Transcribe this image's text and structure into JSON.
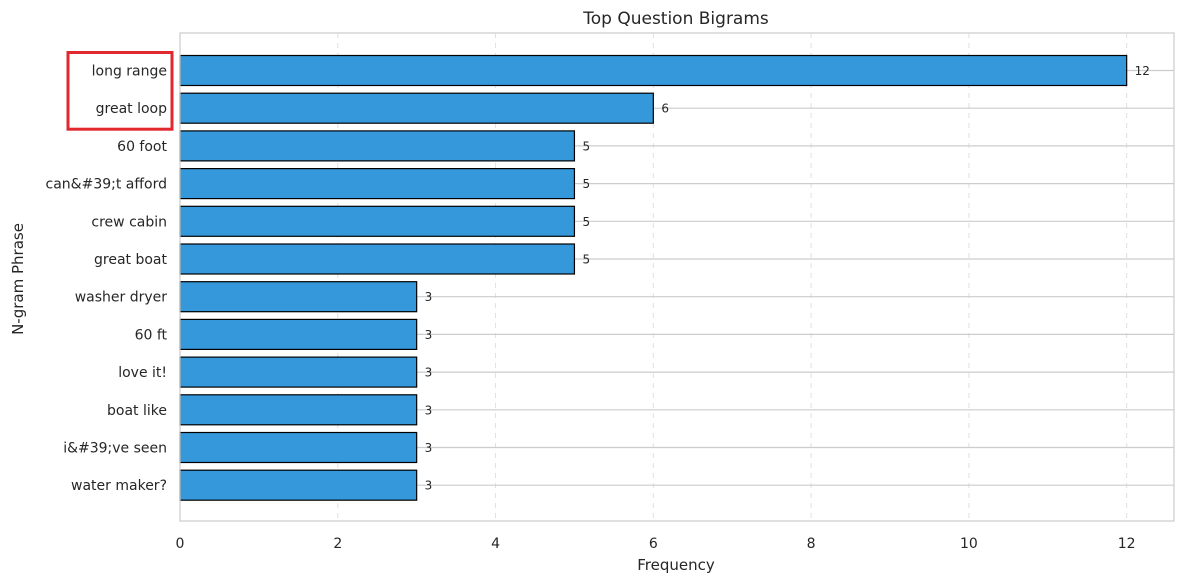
{
  "chart_data": {
    "type": "bar",
    "orientation": "horizontal",
    "title": "Top Question Bigrams",
    "xlabel": "Frequency",
    "ylabel": "N-gram Phrase",
    "categories": [
      "long range",
      "great loop",
      "60 foot",
      "can&#39;t afford",
      "crew cabin",
      "great boat",
      "washer dryer",
      "60 ft",
      "love it!",
      "boat like",
      "i&#39;ve seen",
      "water maker?"
    ],
    "values": [
      12,
      6,
      5,
      5,
      5,
      5,
      3,
      3,
      3,
      3,
      3,
      3
    ],
    "xlim": [
      0,
      12.6
    ],
    "xticks": [
      0,
      2,
      4,
      6,
      8,
      10,
      12
    ],
    "grid": true,
    "highlighted_categories": [
      "long range",
      "great loop"
    ],
    "colors": {
      "bar": "#3498db",
      "bar_edge": "#000000",
      "highlight_box": "#e0282e",
      "grid": "#cccccc",
      "axis": "#cccccc",
      "text": "#262626"
    }
  }
}
